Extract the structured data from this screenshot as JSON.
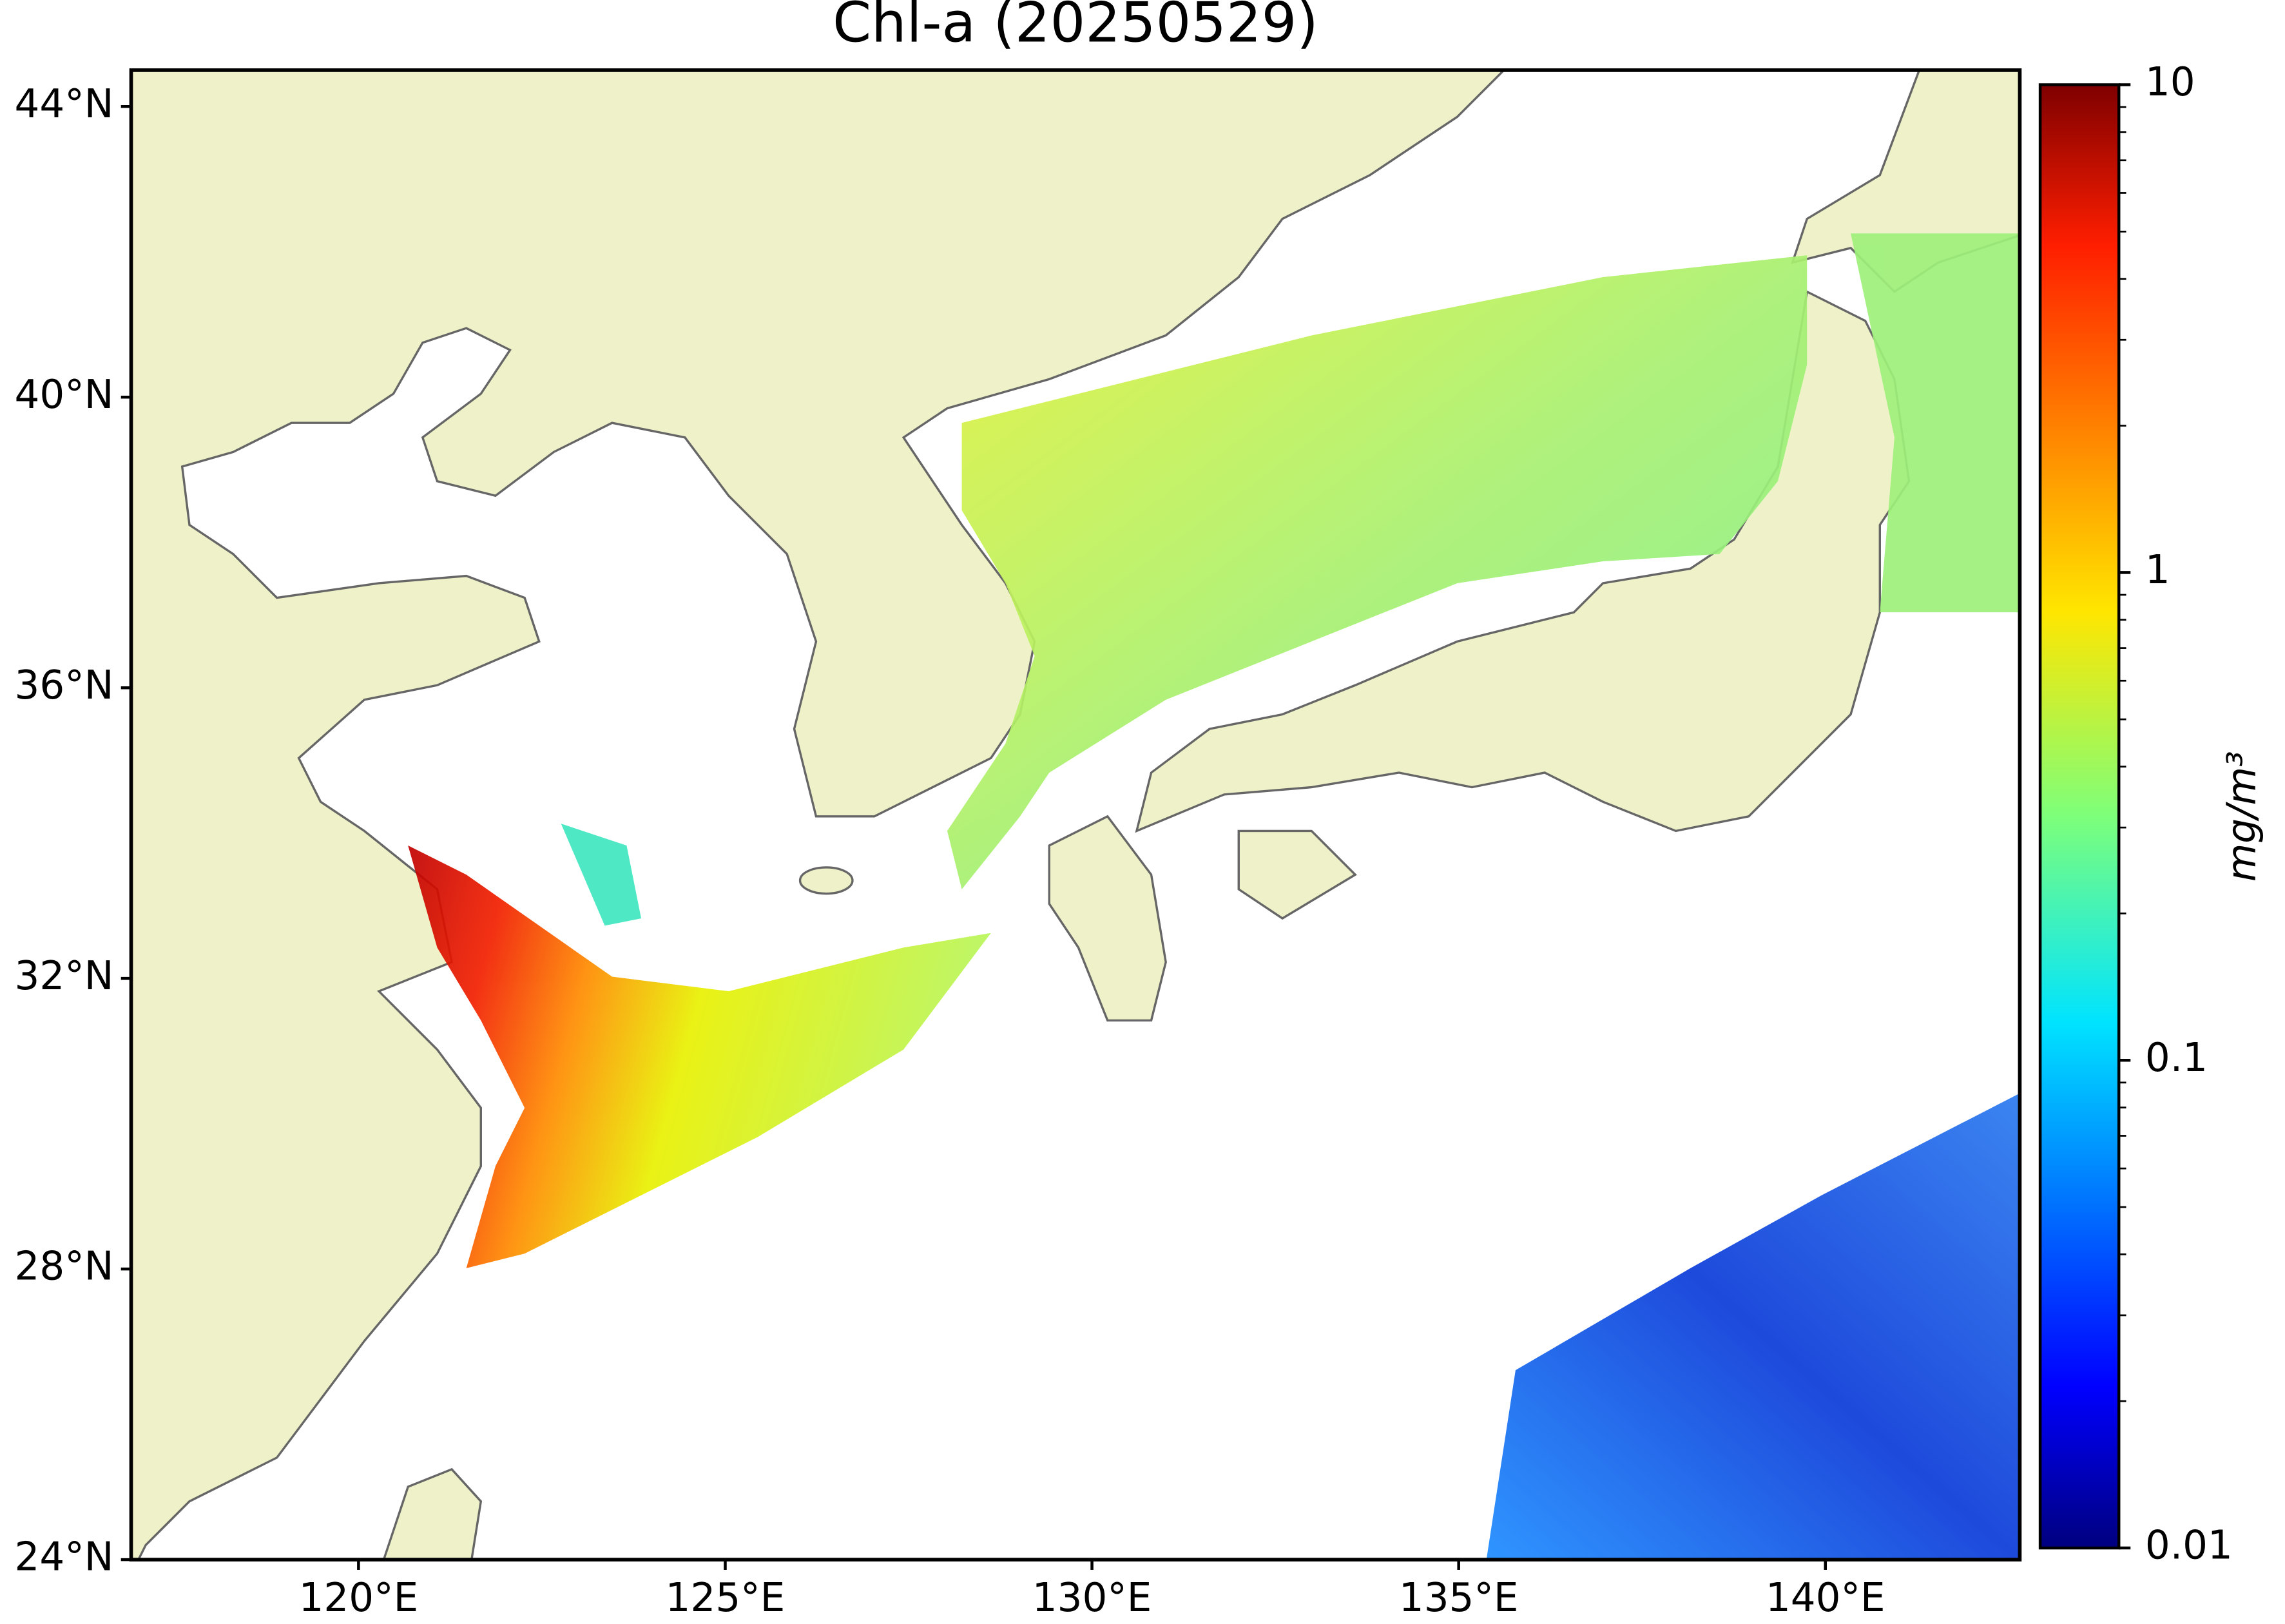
{
  "chart_data": {
    "type": "map",
    "title": "Chl-a (20250529)",
    "xlim": [
      116.9,
      142.65
    ],
    "ylim": [
      24,
      44.5
    ],
    "xticks": [
      {
        "value": 120,
        "label": "120°E"
      },
      {
        "value": 125,
        "label": "125°E"
      },
      {
        "value": 130,
        "label": "130°E"
      },
      {
        "value": 135,
        "label": "135°E"
      },
      {
        "value": 140,
        "label": "140°E"
      }
    ],
    "yticks": [
      {
        "value": 24,
        "label": "24°N"
      },
      {
        "value": 28,
        "label": "28°N"
      },
      {
        "value": 32,
        "label": "32°N"
      },
      {
        "value": 36,
        "label": "36°N"
      },
      {
        "value": 40,
        "label": "40°N"
      },
      {
        "value": 44,
        "label": "44°N"
      }
    ],
    "colorbar": {
      "label": "mg/m³",
      "clim": [
        0.01,
        10
      ],
      "ticks": [
        0.01,
        0.1,
        1,
        10
      ],
      "log": true,
      "colormap": "jet"
    },
    "land_color": "#eff2c8"
  }
}
